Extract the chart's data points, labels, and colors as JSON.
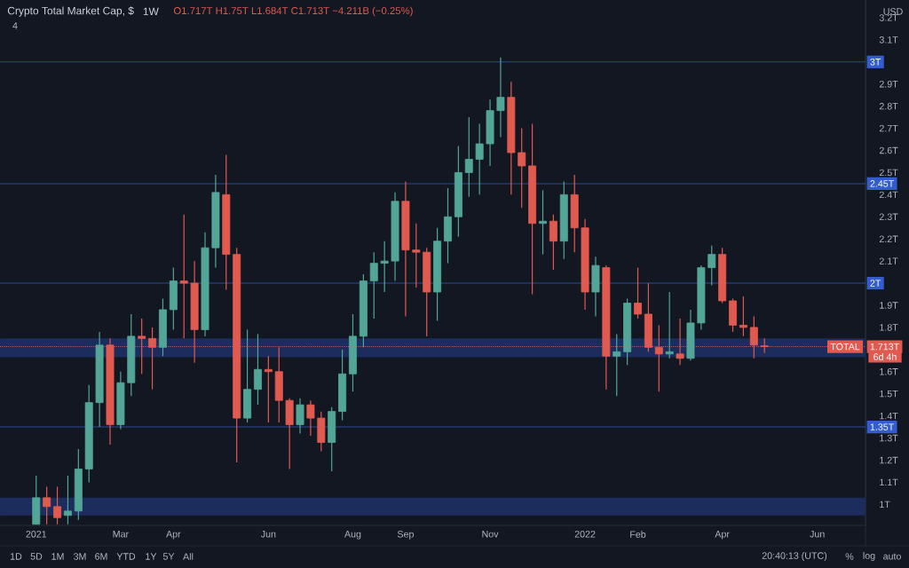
{
  "chart_data": {
    "type": "candlestick",
    "title": "Crypto Total Market Cap, $",
    "subtitle": "1W",
    "x": [
      "2021-01-04",
      "2021-01-11",
      "2021-01-18",
      "2021-01-25",
      "2021-02-01",
      "2021-02-08",
      "2021-02-15",
      "2021-02-22",
      "2021-03-01",
      "2021-03-08",
      "2021-03-15",
      "2021-03-22",
      "2021-03-29",
      "2021-04-05",
      "2021-04-12",
      "2021-04-19",
      "2021-04-26",
      "2021-05-03",
      "2021-05-10",
      "2021-05-17",
      "2021-05-24",
      "2021-05-31",
      "2021-06-07",
      "2021-06-14",
      "2021-06-21",
      "2021-06-28",
      "2021-07-05",
      "2021-07-12",
      "2021-07-19",
      "2021-07-26",
      "2021-08-02",
      "2021-08-09",
      "2021-08-16",
      "2021-08-23",
      "2021-08-30",
      "2021-09-06",
      "2021-09-13",
      "2021-09-20",
      "2021-09-27",
      "2021-10-04",
      "2021-10-11",
      "2021-10-18",
      "2021-10-25",
      "2021-11-01",
      "2021-11-08",
      "2021-11-15",
      "2021-11-22",
      "2021-11-29",
      "2021-12-06",
      "2021-12-13",
      "2021-12-20",
      "2021-12-27",
      "2022-01-03",
      "2022-01-10",
      "2022-01-17",
      "2022-01-24",
      "2022-01-31",
      "2022-02-07",
      "2022-02-14",
      "2022-02-21",
      "2022-02-28",
      "2022-03-07",
      "2022-03-14",
      "2022-03-21",
      "2022-03-28",
      "2022-04-04",
      "2022-04-11",
      "2022-04-18",
      "2022-04-25",
      "2022-05-02"
    ],
    "ohlc": [
      [
        0.91,
        1.13,
        0.91,
        1.03
      ],
      [
        1.03,
        1.08,
        0.91,
        0.99
      ],
      [
        0.99,
        1.08,
        0.91,
        0.94
      ],
      [
        0.95,
        1.13,
        0.91,
        0.97
      ],
      [
        0.97,
        1.25,
        0.93,
        1.16
      ],
      [
        1.16,
        1.54,
        1.1,
        1.46
      ],
      [
        1.46,
        1.78,
        1.35,
        1.72
      ],
      [
        1.72,
        1.75,
        1.27,
        1.36
      ],
      [
        1.36,
        1.6,
        1.34,
        1.55
      ],
      [
        1.55,
        1.86,
        1.49,
        1.76
      ],
      [
        1.76,
        1.84,
        1.59,
        1.75
      ],
      [
        1.75,
        1.8,
        1.52,
        1.71
      ],
      [
        1.71,
        1.93,
        1.67,
        1.88
      ],
      [
        1.88,
        2.07,
        1.79,
        2.01
      ],
      [
        2.01,
        2.31,
        1.75,
        2.0
      ],
      [
        2.0,
        2.1,
        1.64,
        1.79
      ],
      [
        1.79,
        2.23,
        1.76,
        2.16
      ],
      [
        2.16,
        2.49,
        2.07,
        2.41
      ],
      [
        2.4,
        2.58,
        1.97,
        2.13
      ],
      [
        2.13,
        2.16,
        1.19,
        1.39
      ],
      [
        1.39,
        1.79,
        1.37,
        1.52
      ],
      [
        1.52,
        1.77,
        1.45,
        1.61
      ],
      [
        1.61,
        1.67,
        1.37,
        1.6
      ],
      [
        1.6,
        1.71,
        1.37,
        1.47
      ],
      [
        1.47,
        1.48,
        1.16,
        1.36
      ],
      [
        1.36,
        1.48,
        1.32,
        1.45
      ],
      [
        1.45,
        1.47,
        1.31,
        1.39
      ],
      [
        1.39,
        1.42,
        1.24,
        1.28
      ],
      [
        1.28,
        1.44,
        1.15,
        1.42
      ],
      [
        1.42,
        1.7,
        1.38,
        1.59
      ],
      [
        1.59,
        1.86,
        1.51,
        1.76
      ],
      [
        1.76,
        2.04,
        1.71,
        2.01
      ],
      [
        2.01,
        2.14,
        1.84,
        2.09
      ],
      [
        2.09,
        2.19,
        1.96,
        2.1
      ],
      [
        2.1,
        2.41,
        2.01,
        2.37
      ],
      [
        2.37,
        2.46,
        1.85,
        2.15
      ],
      [
        2.15,
        2.27,
        1.98,
        2.14
      ],
      [
        2.14,
        2.16,
        1.76,
        1.96
      ],
      [
        1.96,
        2.25,
        1.83,
        2.19
      ],
      [
        2.19,
        2.43,
        2.09,
        2.3
      ],
      [
        2.3,
        2.62,
        2.21,
        2.5
      ],
      [
        2.5,
        2.75,
        2.39,
        2.56
      ],
      [
        2.56,
        2.72,
        2.4,
        2.63
      ],
      [
        2.63,
        2.83,
        2.53,
        2.78
      ],
      [
        2.78,
        3.02,
        2.66,
        2.84
      ],
      [
        2.84,
        2.91,
        2.4,
        2.59
      ],
      [
        2.59,
        2.7,
        2.34,
        2.53
      ],
      [
        2.53,
        2.72,
        1.95,
        2.27
      ],
      [
        2.27,
        2.42,
        2.13,
        2.28
      ],
      [
        2.28,
        2.31,
        2.06,
        2.19
      ],
      [
        2.19,
        2.46,
        2.11,
        2.4
      ],
      [
        2.4,
        2.49,
        2.14,
        2.25
      ],
      [
        2.25,
        2.29,
        1.88,
        1.96
      ],
      [
        1.96,
        2.12,
        1.85,
        2.08
      ],
      [
        2.07,
        2.08,
        1.52,
        1.67
      ],
      [
        1.67,
        1.77,
        1.49,
        1.69
      ],
      [
        1.69,
        1.93,
        1.63,
        1.91
      ],
      [
        1.91,
        2.07,
        1.84,
        1.86
      ],
      [
        1.86,
        2.0,
        1.69,
        1.71
      ],
      [
        1.71,
        1.81,
        1.51,
        1.68
      ],
      [
        1.68,
        1.96,
        1.66,
        1.69
      ],
      [
        1.68,
        1.84,
        1.63,
        1.66
      ],
      [
        1.66,
        1.88,
        1.65,
        1.82
      ],
      [
        1.82,
        2.08,
        1.79,
        2.07
      ],
      [
        2.07,
        2.17,
        1.99,
        2.13
      ],
      [
        2.13,
        2.16,
        1.91,
        1.92
      ],
      [
        1.92,
        1.93,
        1.78,
        1.81
      ],
      [
        1.81,
        1.94,
        1.76,
        1.8
      ],
      [
        1.8,
        1.85,
        1.66,
        1.72
      ],
      [
        1.717,
        1.75,
        1.684,
        1.713
      ]
    ],
    "colors": [
      "#53a697",
      "#e15a50",
      "#e15a50",
      "#53a697",
      "#53a697",
      "#53a697",
      "#53a697",
      "#e15a50",
      "#53a697",
      "#53a697",
      "#e15a50",
      "#e15a50",
      "#53a697",
      "#53a697",
      "#e15a50",
      "#e15a50",
      "#53a697",
      "#53a697",
      "#e15a50",
      "#e15a50",
      "#53a697",
      "#53a697",
      "#e15a50",
      "#e15a50",
      "#e15a50",
      "#53a697",
      "#e15a50",
      "#e15a50",
      "#53a697",
      "#53a697",
      "#53a697",
      "#53a697",
      "#53a697",
      "#53a697",
      "#53a697",
      "#e15a50",
      "#e15a50",
      "#e15a50",
      "#53a697",
      "#53a697",
      "#53a697",
      "#53a697",
      "#53a697",
      "#53a697",
      "#53a697",
      "#e15a50",
      "#e15a50",
      "#e15a50",
      "#53a697",
      "#e15a50",
      "#53a697",
      "#e15a50",
      "#e15a50",
      "#53a697",
      "#e15a50",
      "#53a697",
      "#53a697",
      "#e15a50",
      "#e15a50",
      "#e15a50",
      "#53a697",
      "#e15a50",
      "#53a697",
      "#53a697",
      "#53a697",
      "#e15a50",
      "#e15a50",
      "#e15a50",
      "#e15a50",
      "#e15a50"
    ],
    "xlim": [
      "2020-12-11",
      "2022-07-08"
    ],
    "xticks": [
      {
        "value": "2021-01-04",
        "label": "2021"
      },
      {
        "value": "2021-03-01",
        "label": "Mar"
      },
      {
        "value": "2021-04-05",
        "label": "Apr"
      },
      {
        "value": "2021-06-07",
        "label": "Jun"
      },
      {
        "value": "2021-08-02",
        "label": "Aug"
      },
      {
        "value": "2021-09-06",
        "label": "Sep"
      },
      {
        "value": "2021-11-01",
        "label": "Nov"
      },
      {
        "value": "2022-01-03",
        "label": "2022"
      },
      {
        "value": "2022-02-07",
        "label": "Feb"
      },
      {
        "value": "2022-04-04",
        "label": "Apr"
      },
      {
        "value": "2022-06-06",
        "label": "Jun"
      }
    ],
    "ylim": [
      0.905,
      3.28
    ],
    "yticks": [
      {
        "value": 1,
        "label": "1T"
      },
      {
        "value": 1.1,
        "label": "1.1T"
      },
      {
        "value": 1.2,
        "label": "1.2T"
      },
      {
        "value": 1.3,
        "label": "1.3T"
      },
      {
        "value": 1.4,
        "label": "1.4T"
      },
      {
        "value": 1.5,
        "label": "1.5T"
      },
      {
        "value": 1.6,
        "label": "1.6T"
      },
      {
        "value": 1.7,
        "label": null
      },
      {
        "value": 1.8,
        "label": "1.8T"
      },
      {
        "value": 1.9,
        "label": "1.9T"
      },
      {
        "value": 2,
        "label": null
      },
      {
        "value": 2.1,
        "label": "2.1T"
      },
      {
        "value": 2.2,
        "label": "2.2T"
      },
      {
        "value": 2.3,
        "label": "2.3T"
      },
      {
        "value": 2.4,
        "label": "2.4T"
      },
      {
        "value": 2.5,
        "label": "2.5T"
      },
      {
        "value": 2.6,
        "label": "2.6T"
      },
      {
        "value": 2.7,
        "label": "2.7T"
      },
      {
        "value": 2.8,
        "label": "2.8T"
      },
      {
        "value": 2.9,
        "label": "2.9T"
      },
      {
        "value": 3,
        "label": null
      },
      {
        "value": 3.1,
        "label": "3.1T"
      },
      {
        "value": 3.2,
        "label": "3.2T"
      }
    ],
    "ref_lines": [
      {
        "axis": "y",
        "value": 3,
        "label": "3T",
        "color": "#2a4a94"
      },
      {
        "axis": "y",
        "value": 2.45,
        "label": "2.45T",
        "color": "#2a4a94"
      },
      {
        "axis": "y",
        "value": 2,
        "label": "2T",
        "color": "#2a4a94"
      },
      {
        "axis": "y",
        "value": 1.35,
        "label": "1.35T",
        "color": "#2a4a94"
      },
      {
        "axis": "y",
        "value": 1.713,
        "label": "1.713T",
        "color": "#e15a50",
        "line_style": "dotted"
      }
    ],
    "bands": [
      {
        "axis": "y",
        "from": 1.665,
        "to": 1.75,
        "color": "#1c2c5c"
      },
      {
        "axis": "y",
        "from": 0.95,
        "to": 1.03,
        "color": "#1c2c5c"
      }
    ],
    "annotations": [
      "O1.717T H1.75T L1.684T C1.713T −4.211B (−0.25%)",
      "4",
      "USD",
      "1D",
      "5D",
      "1M",
      "3M",
      "6M",
      "YTD",
      "1Y",
      "5Y",
      "All",
      "20:40:13 (UTC)",
      "%",
      "log",
      "auto",
      {
        "text": "TOTAL",
        "y": 1.713
      },
      "6d 4h"
    ]
  }
}
